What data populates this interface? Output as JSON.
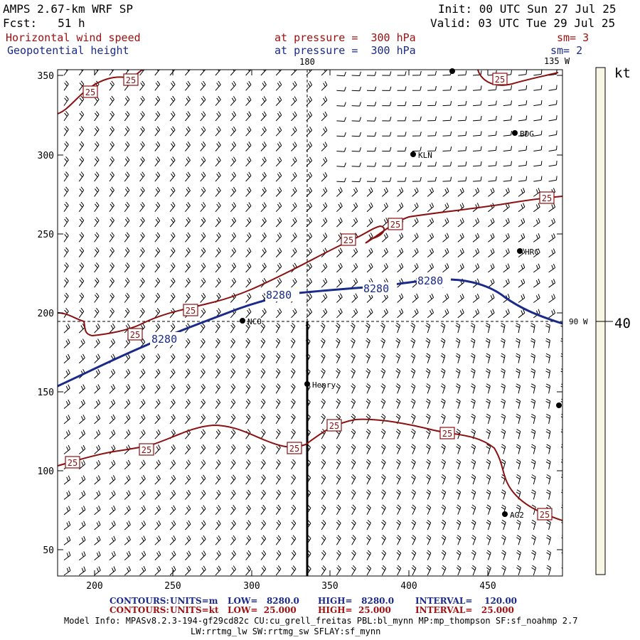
{
  "header": {
    "model": "AMPS 2.67-km WRF SP",
    "forecast": "Fcst:   51 h",
    "init": "Init: 00 UTC Sun 27 Jul 25",
    "valid": "Valid: 03 UTC Tue 29 Jul 25",
    "field1_name": "Horizontal wind speed",
    "field1_level": "at pressure =  300 hPa",
    "field1_sm": "sm= 3",
    "field2_name": "Geopotential height",
    "field2_level": "at pressure =  300 hPa",
    "field2_sm": "sm= 2"
  },
  "map": {
    "x_ticks": [
      "200",
      "250",
      "300",
      "350",
      "400",
      "450"
    ],
    "y_ticks": [
      "350",
      "300",
      "250",
      "200",
      "150",
      "100",
      "50"
    ],
    "meridian_180": "180",
    "meridian_135w": "135 W",
    "meridian_90w": "90 W",
    "stations": [
      {
        "id": "VIT",
        "label": ""
      },
      {
        "id": "BDG",
        "label": "BDG"
      },
      {
        "id": "KLN",
        "label": "KLN"
      },
      {
        "id": "HRC",
        "label": "HRC"
      },
      {
        "id": "NCO",
        "label": "NCO"
      },
      {
        "id": "Henry",
        "label": "Henry"
      },
      {
        "id": "AG2",
        "label": "AG2"
      },
      {
        "id": "E",
        "label": ""
      }
    ],
    "height_contour_label": "8280",
    "speed_contour_label": "25"
  },
  "colorbar": {
    "unit": "kt",
    "tick": "40",
    "color": "#f8f6e4"
  },
  "footer": {
    "line1_label": "CONTOURS:",
    "line1_units": "UNITS=m",
    "line1_low": "LOW=   8280.0",
    "line1_high": "HIGH=   8280.0",
    "line1_interval": "INTERVAL=    120.00",
    "line2_label": "CONTOURS:",
    "line2_units": "UNITS=kt",
    "line2_low": "LOW=  25.000",
    "line2_high": "HIGH=  25.000",
    "line2_interval": "INTERVAL=   25.000",
    "model_info": "Model Info: MPASv8.2.3-194-gf29cd82c CU:cu_grell_freitas PBL:bl_mynn MP:mp_thompson SF:sf_noahmp 2.7",
    "model_info2": "LW:rrtmg_lw SW:rrtmg_sw SFLAY:sf_mynn"
  },
  "colors": {
    "height_contour": "#1a2a8a",
    "speed_contour": "#8b1010",
    "line1": "#1a2a8a",
    "line2": "#a01010"
  }
}
